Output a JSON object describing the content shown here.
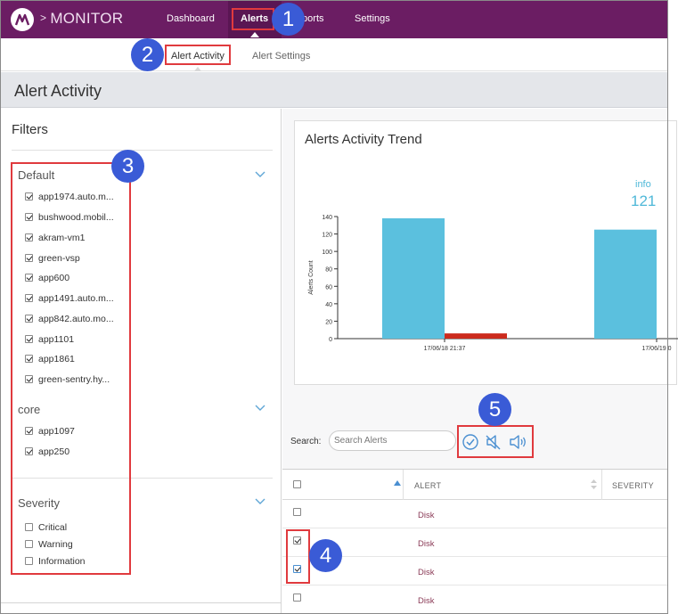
{
  "app": {
    "brand": "MONITOR",
    "brand_chevron": ">"
  },
  "nav": {
    "dashboard": "Dashboard",
    "alerts": "Alerts",
    "reports": "Reports",
    "settings": "Settings"
  },
  "subnav": {
    "alert_activity": "Alert Activity",
    "alert_settings": "Alert Settings"
  },
  "page": {
    "title": "Alert Activity"
  },
  "filters": {
    "title": "Filters",
    "groups": [
      {
        "name": "Default",
        "items": [
          {
            "label": "app1974.auto.m...",
            "checked": true
          },
          {
            "label": "bushwood.mobil...",
            "checked": true
          },
          {
            "label": "akram-vm1",
            "checked": true
          },
          {
            "label": "green-vsp",
            "checked": true
          },
          {
            "label": "app600",
            "checked": true
          },
          {
            "label": "app1491.auto.m...",
            "checked": true
          },
          {
            "label": "app842.auto.mo...",
            "checked": true
          },
          {
            "label": "app1101",
            "checked": true
          },
          {
            "label": "app1861",
            "checked": true
          },
          {
            "label": "green-sentry.hy...",
            "checked": true
          }
        ]
      },
      {
        "name": "core",
        "items": [
          {
            "label": "app1097",
            "checked": true
          },
          {
            "label": "app250",
            "checked": true
          }
        ]
      },
      {
        "name": "Severity",
        "items": [
          {
            "label": "Critical",
            "checked": false
          },
          {
            "label": "Warning",
            "checked": false
          },
          {
            "label": "Information",
            "checked": false
          }
        ]
      }
    ]
  },
  "chart_data": {
    "type": "bar",
    "title": "Alerts Activity Trend",
    "ylabel": "Alerts Count",
    "ylim": [
      0,
      140
    ],
    "yticks": [
      0,
      20,
      40,
      60,
      80,
      100,
      120,
      140
    ],
    "categories": [
      "17/06/18 21:37",
      "17/06/19 0"
    ],
    "series": [
      {
        "name": "info",
        "color": "#5bc0de",
        "values": [
          138,
          125
        ]
      },
      {
        "color": "#cc2b1d",
        "values": [
          6,
          0
        ]
      }
    ],
    "info_label": "info",
    "info_count": "121"
  },
  "search": {
    "label": "Search:",
    "placeholder": "Search Alerts"
  },
  "toolbar_icons": [
    "check-circle-icon",
    "mute-icon",
    "sound-icon"
  ],
  "table": {
    "columns": [
      "ALERT",
      "SEVERITY"
    ],
    "rows": [
      {
        "alert": "Disk",
        "checked": false
      },
      {
        "alert": "Disk",
        "checked": true
      },
      {
        "alert": "Disk",
        "checked": true
      },
      {
        "alert": "Disk",
        "checked": false
      }
    ]
  },
  "callouts": [
    "1",
    "2",
    "3",
    "4",
    "5"
  ],
  "colors": {
    "topbar": "#6b1d63",
    "accent": "#5bc0de",
    "callout": "#3a5bd6",
    "highlight": "#e03a3e"
  }
}
